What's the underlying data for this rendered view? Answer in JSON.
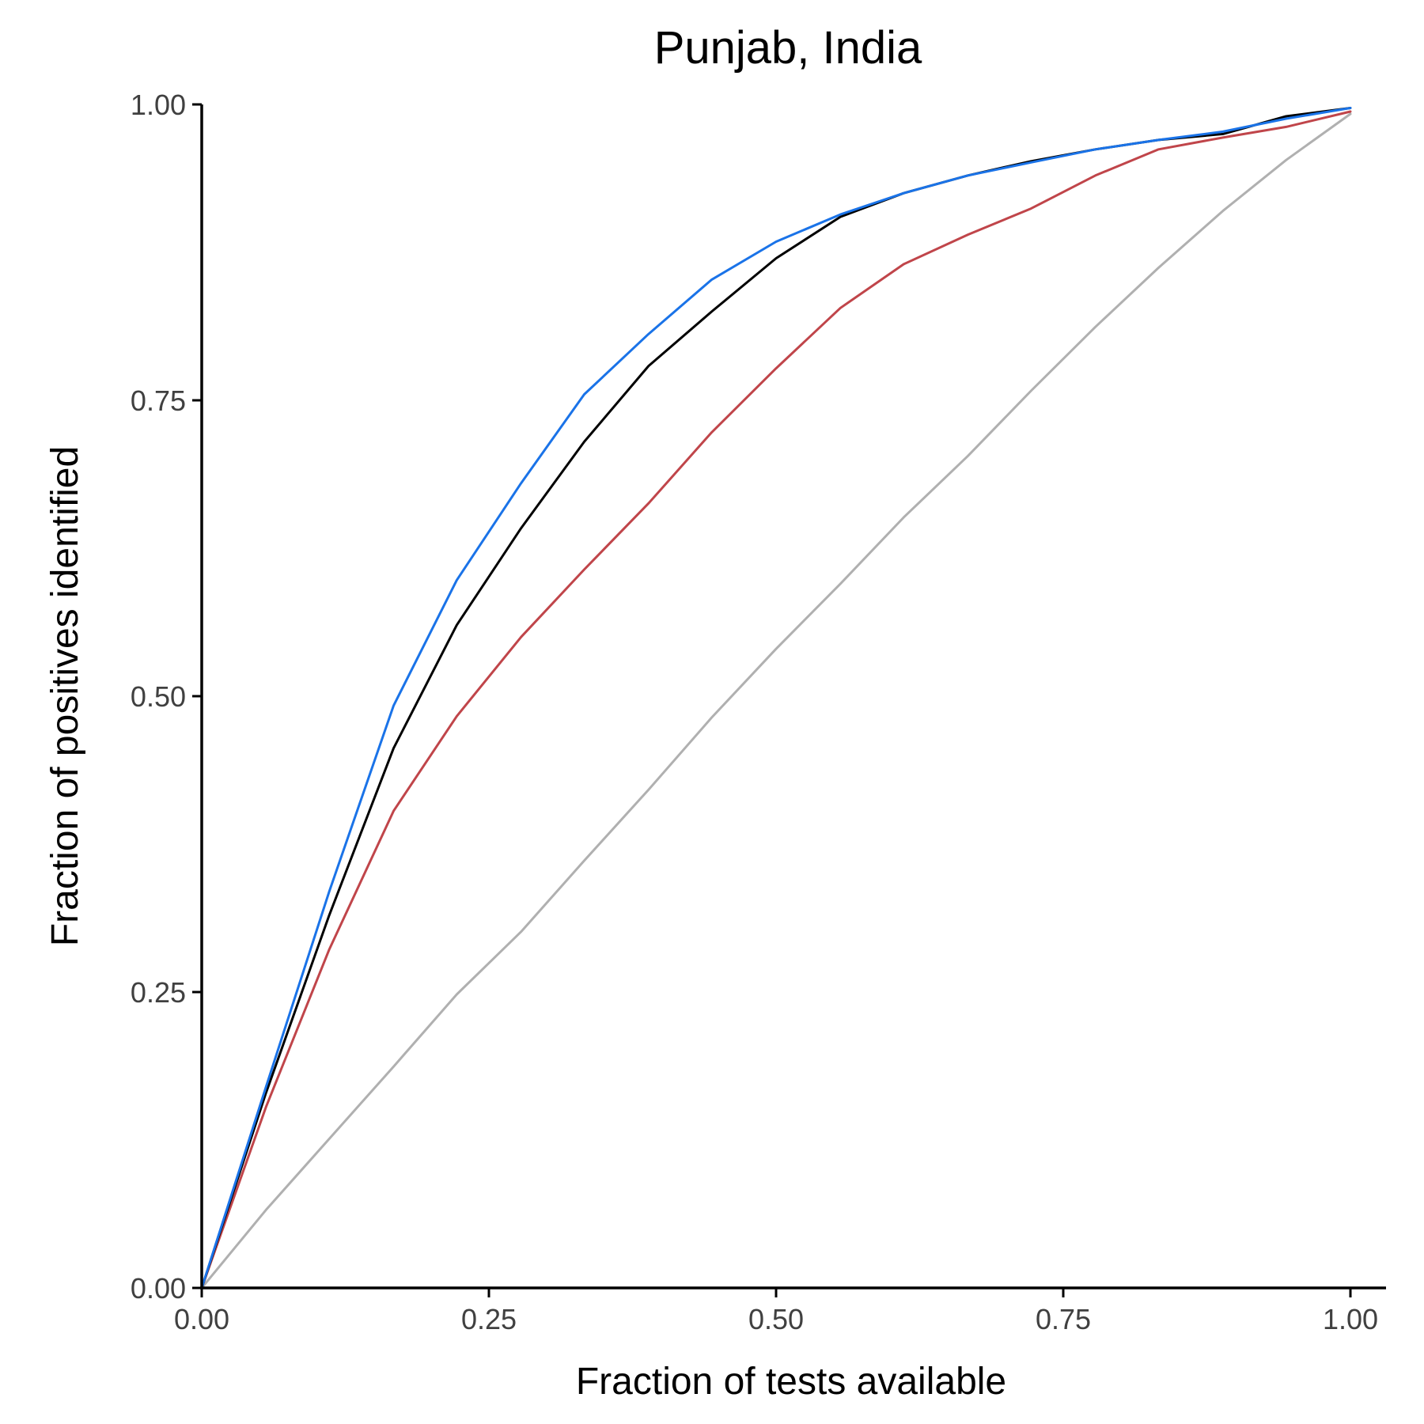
{
  "chart_data": {
    "type": "line",
    "title": "Punjab, India",
    "xlabel": "Fraction of tests available",
    "ylabel": "Fraction of positives identified",
    "xlim": [
      0,
      1.0
    ],
    "ylim": [
      0,
      1.0
    ],
    "xticks": [
      "0.00",
      "0.25",
      "0.50",
      "0.75",
      "1.00"
    ],
    "yticks": [
      "0.00",
      "0.25",
      "0.50",
      "0.75",
      "1.00"
    ],
    "grid": false,
    "legend": "none",
    "x": [
      0,
      0.056,
      0.111,
      0.167,
      0.222,
      0.278,
      0.333,
      0.389,
      0.444,
      0.5,
      0.556,
      0.611,
      0.667,
      0.722,
      0.778,
      0.833,
      0.889,
      0.944,
      1.0
    ],
    "series": [
      {
        "color": "#1a73e8",
        "values": [
          0,
          0.17,
          0.335,
          0.492,
          0.598,
          0.68,
          0.755,
          0.806,
          0.852,
          0.884,
          0.907,
          0.925,
          0.94,
          0.951,
          0.962,
          0.97,
          0.977,
          0.988,
          0.997
        ]
      },
      {
        "color": "#000000",
        "values": [
          0,
          0.165,
          0.315,
          0.456,
          0.56,
          0.642,
          0.715,
          0.779,
          0.825,
          0.87,
          0.905,
          0.925,
          0.94,
          0.952,
          0.962,
          0.97,
          0.975,
          0.99,
          0.997
        ]
      },
      {
        "color": "#c0454a",
        "values": [
          0,
          0.153,
          0.286,
          0.403,
          0.483,
          0.55,
          0.607,
          0.663,
          0.723,
          0.777,
          0.828,
          0.865,
          0.89,
          0.912,
          0.94,
          0.962,
          0.972,
          0.981,
          0.994
        ]
      },
      {
        "color": "#b0b0b0",
        "values": [
          0,
          0.066,
          0.126,
          0.187,
          0.248,
          0.301,
          0.361,
          0.421,
          0.482,
          0.54,
          0.595,
          0.651,
          0.703,
          0.758,
          0.812,
          0.862,
          0.91,
          0.953,
          0.992
        ]
      }
    ]
  }
}
